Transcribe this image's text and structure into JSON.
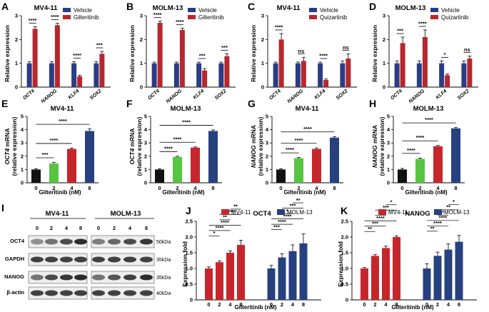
{
  "colors": {
    "blue": "#2b3c86",
    "red": "#b5282d",
    "green": "#56c541",
    "black": "#111111",
    "crimson": "#c6262b",
    "navy": "#27417f"
  },
  "panels": {
    "A": {
      "label": "A",
      "title": "MV4-11",
      "ylabel": "Relative expression"
    },
    "B": {
      "label": "B",
      "title": "MOLM-13",
      "ylabel": "Relative expression"
    },
    "C": {
      "label": "C",
      "title": "MV4-11",
      "ylabel": "Relative expression"
    },
    "D": {
      "label": "D",
      "title": "MOLM-13",
      "ylabel": "Relative expression"
    },
    "E": {
      "label": "E",
      "title": "MV4-11",
      "ylabel_gene": "OCT4",
      "ylabel_rest": " mRNA",
      "ylabel2": "(relative expression)",
      "xlabel": "Gilteritinib  (nM)"
    },
    "F": {
      "label": "F",
      "title": "MOLM-13",
      "ylabel_gene": "OCT4",
      "ylabel_rest": " mRNA",
      "ylabel2": "(relative expression)",
      "xlabel": "Gilteritinib  (nM)"
    },
    "G": {
      "label": "G",
      "title": "MV4-11",
      "ylabel_gene": "NANOG",
      "ylabel_rest": " mRNA",
      "ylabel2": "(relative expression)",
      "xlabel": "Gilteritinib  (nM)"
    },
    "H": {
      "label": "H",
      "title": "MOLM-13",
      "ylabel_gene": "NANOG",
      "ylabel_rest": " mRNA",
      "ylabel2": "(relative expression)",
      "xlabel": "Gilteritinib  (nM)"
    },
    "I": {
      "label": "I",
      "group1": "MV4-11",
      "group2": "MOLM-13",
      "lanes": [
        "0",
        "2",
        "4",
        "8",
        "0",
        "2",
        "4",
        "8"
      ],
      "rows": [
        {
          "name": "OCT4",
          "kda": "50kDa"
        },
        {
          "name": "GAPDH",
          "kda": "35kDa"
        },
        {
          "name": "NANOG",
          "kda": "35kDa"
        },
        {
          "name": "β-actin",
          "kda": "40kDa"
        }
      ]
    },
    "J": {
      "label": "J",
      "title": "OCT4",
      "ylabel": "Expression fold",
      "xlabel": "Gilteritinib  (nM)"
    },
    "K": {
      "label": "K",
      "title": "NANOG",
      "ylabel": "Expression fold",
      "xlabel": "Gilteritinib  (nM)"
    }
  },
  "chart_data": [
    {
      "panel": "A",
      "type": "bar",
      "title": "MV4-11",
      "ylabel": "Relative expression",
      "categories": [
        "OCT4",
        "NANOG",
        "KLF4",
        "SOX2"
      ],
      "ylim": [
        0,
        3
      ],
      "yticks": [
        0,
        1,
        2,
        3
      ],
      "series": [
        {
          "name": "Vehicle",
          "values": [
            1.0,
            1.0,
            1.0,
            1.0
          ],
          "errors": [
            0.07,
            0.07,
            0.07,
            0.07
          ]
        },
        {
          "name": "Gilteritinib",
          "values": [
            2.45,
            2.6,
            0.45,
            1.4
          ],
          "errors": [
            0.09,
            0.08,
            0.05,
            0.1
          ]
        }
      ],
      "significance": [
        "****",
        "****",
        "****",
        "***"
      ]
    },
    {
      "panel": "B",
      "type": "bar",
      "title": "MOLM-13",
      "ylabel": "Relative expression",
      "categories": [
        "OCT4",
        "NANOG",
        "KLF4",
        "SOX2"
      ],
      "ylim": [
        0,
        3
      ],
      "yticks": [
        0,
        1,
        2,
        3
      ],
      "series": [
        {
          "name": "Vehicle",
          "values": [
            1.0,
            1.0,
            1.0,
            1.0
          ],
          "errors": [
            0.05,
            0.05,
            0.05,
            0.05
          ]
        },
        {
          "name": "Gilteritinib",
          "values": [
            2.7,
            2.4,
            0.7,
            1.3
          ],
          "errors": [
            0.07,
            0.07,
            0.08,
            0.1
          ]
        }
      ],
      "significance": [
        "****",
        "****",
        "***",
        "***"
      ]
    },
    {
      "panel": "C",
      "type": "bar",
      "title": "MV4-11",
      "ylabel": "Relative expression",
      "categories": [
        "OCT4",
        "NANOG",
        "KLF4",
        "SOX2"
      ],
      "ylim": [
        0,
        3
      ],
      "yticks": [
        0,
        1,
        2,
        3
      ],
      "series": [
        {
          "name": "Vehicle",
          "values": [
            1.0,
            1.0,
            1.0,
            1.0
          ],
          "errors": [
            0.05,
            0.05,
            0.05,
            0.1
          ]
        },
        {
          "name": "Quizartinib",
          "values": [
            2.0,
            1.1,
            0.3,
            1.2
          ],
          "errors": [
            0.25,
            0.15,
            0.04,
            0.2
          ]
        }
      ],
      "significance": [
        "****",
        "ns",
        "****",
        "ns"
      ]
    },
    {
      "panel": "D",
      "type": "bar",
      "title": "MOLM-13",
      "ylabel": "Relative expression",
      "categories": [
        "OCT4",
        "NANOG",
        "KLF4",
        "SOX2"
      ],
      "ylim": [
        0,
        3
      ],
      "yticks": [
        0,
        1,
        2,
        3
      ],
      "series": [
        {
          "name": "Vehicle",
          "values": [
            1.0,
            1.0,
            1.0,
            1.0
          ],
          "errors": [
            0.1,
            0.1,
            0.1,
            0.1
          ]
        },
        {
          "name": "Quizartinib",
          "values": [
            1.85,
            2.1,
            0.5,
            1.2
          ],
          "errors": [
            0.25,
            0.3,
            0.05,
            0.1
          ]
        }
      ],
      "significance": [
        "***",
        "****",
        "*",
        "ns"
      ]
    },
    {
      "panel": "E",
      "type": "bar",
      "title": "MV4-11",
      "xlabel": "Gilteritinib  (nM)",
      "categories": [
        "0",
        "2",
        "4",
        "8"
      ],
      "ylim": [
        0,
        5
      ],
      "yticks": [
        0,
        1,
        2,
        3,
        4,
        5
      ],
      "values": [
        1.0,
        1.45,
        2.55,
        3.9
      ],
      "errors": [
        0.06,
        0.08,
        0.06,
        0.15
      ],
      "comparisons": [
        {
          "from": 0,
          "to": 1,
          "label": "***"
        },
        {
          "from": 0,
          "to": 2,
          "label": "****"
        },
        {
          "from": 0,
          "to": 3,
          "label": "****"
        }
      ]
    },
    {
      "panel": "F",
      "type": "bar",
      "title": "MOLM-13",
      "xlabel": "Gilteritinib  (nM)",
      "categories": [
        "0",
        "2",
        "4",
        "8"
      ],
      "ylim": [
        0,
        5
      ],
      "yticks": [
        0,
        1,
        2,
        3,
        4,
        5
      ],
      "values": [
        1.0,
        1.95,
        2.65,
        3.9
      ],
      "errors": [
        0.06,
        0.05,
        0.05,
        0.08
      ],
      "comparisons": [
        {
          "from": 0,
          "to": 1,
          "label": "****"
        },
        {
          "from": 0,
          "to": 2,
          "label": "****"
        },
        {
          "from": 0,
          "to": 3,
          "label": "****"
        }
      ]
    },
    {
      "panel": "G",
      "type": "bar",
      "title": "MV4-11",
      "xlabel": "Gilteritinib  (nM)",
      "categories": [
        "0",
        "2",
        "4",
        "8"
      ],
      "ylim": [
        0,
        5
      ],
      "yticks": [
        0,
        1,
        2,
        3,
        4,
        5
      ],
      "values": [
        1.0,
        1.85,
        2.55,
        3.4
      ],
      "errors": [
        0.06,
        0.05,
        0.07,
        0.08
      ],
      "comparisons": [
        {
          "from": 0,
          "to": 1,
          "label": "****"
        },
        {
          "from": 0,
          "to": 2,
          "label": "****"
        },
        {
          "from": 0,
          "to": 3,
          "label": "****"
        }
      ]
    },
    {
      "panel": "H",
      "type": "bar",
      "title": "MOLM-13",
      "xlabel": "Gilteritinib  (nM)",
      "categories": [
        "0",
        "2",
        "4",
        "8"
      ],
      "ylim": [
        0,
        5
      ],
      "yticks": [
        0,
        1,
        2,
        3,
        4,
        5
      ],
      "values": [
        1.0,
        1.8,
        2.75,
        4.1
      ],
      "errors": [
        0.08,
        0.06,
        0.06,
        0.06
      ],
      "comparisons": [
        {
          "from": 0,
          "to": 1,
          "label": "****"
        },
        {
          "from": 0,
          "to": 2,
          "label": "****"
        },
        {
          "from": 0,
          "to": 3,
          "label": "****"
        }
      ]
    },
    {
      "panel": "J",
      "type": "bar",
      "title": "OCT4",
      "ylabel": "Expression fold",
      "xlabel": "Gilteritinib  (nM)",
      "categories": [
        "0",
        "2",
        "4",
        "8"
      ],
      "ylim": [
        0,
        2.5
      ],
      "yticks": [
        0,
        0.5,
        1,
        1.5,
        2,
        2.5
      ],
      "series": [
        {
          "name": "MV4-11",
          "values": [
            1.0,
            1.2,
            1.5,
            1.75
          ],
          "errors": [
            0.05,
            0.04,
            0.06,
            0.15
          ]
        },
        {
          "name": "MOLM-13",
          "values": [
            1.0,
            1.35,
            1.55,
            1.8
          ],
          "errors": [
            0.1,
            0.12,
            0.2,
            0.3
          ]
        }
      ],
      "comparisons": [
        [
          {
            "from": 0,
            "to": 1,
            "label": "*"
          },
          {
            "from": 0,
            "to": 2,
            "label": "****"
          },
          {
            "from": 0,
            "to": 3,
            "label": "****"
          },
          {
            "from": 1,
            "to": 2,
            "label": "**"
          },
          {
            "from": 1,
            "to": 3,
            "label": "****"
          },
          {
            "from": 2,
            "to": 3,
            "label": "**"
          }
        ],
        [
          {
            "from": 0,
            "to": 1,
            "label": "***"
          },
          {
            "from": 0,
            "to": 2,
            "label": "****"
          },
          {
            "from": 0,
            "to": 3,
            "label": "****"
          },
          {
            "from": 1,
            "to": 2,
            "label": "*"
          },
          {
            "from": 1,
            "to": 3,
            "label": "***"
          },
          {
            "from": 2,
            "to": 3,
            "label": "**"
          }
        ]
      ]
    },
    {
      "panel": "K",
      "type": "bar",
      "title": "NANOG",
      "ylabel": "Expression fold",
      "xlabel": "Gilteritinib  (nM)",
      "categories": [
        "0",
        "2",
        "4",
        "8"
      ],
      "ylim": [
        0,
        2.5
      ],
      "yticks": [
        0,
        0.5,
        1,
        1.5,
        2,
        2.5
      ],
      "series": [
        {
          "name": "MV4-11",
          "values": [
            1.0,
            1.4,
            1.65,
            2.0
          ],
          "errors": [
            0.03,
            0.04,
            0.06,
            0.04
          ]
        },
        {
          "name": "MOLM-13",
          "values": [
            1.0,
            1.4,
            1.6,
            1.85
          ],
          "errors": [
            0.15,
            0.12,
            0.18,
            0.2
          ]
        }
      ],
      "comparisons": [
        [
          {
            "from": 0,
            "to": 1,
            "label": "**"
          },
          {
            "from": 0,
            "to": 2,
            "label": "***"
          },
          {
            "from": 0,
            "to": 3,
            "label": "****"
          },
          {
            "from": 1,
            "to": 2,
            "label": "**"
          },
          {
            "from": 1,
            "to": 3,
            "label": "***"
          },
          {
            "from": 2,
            "to": 3,
            "label": "*"
          }
        ],
        [
          {
            "from": 0,
            "to": 1,
            "label": "**"
          },
          {
            "from": 0,
            "to": 2,
            "label": "****"
          },
          {
            "from": 0,
            "to": 3,
            "label": "****"
          },
          {
            "from": 1,
            "to": 2,
            "label": "*"
          },
          {
            "from": 1,
            "to": 3,
            "label": "**"
          },
          {
            "from": 2,
            "to": 3,
            "label": "*"
          }
        ]
      ]
    }
  ]
}
